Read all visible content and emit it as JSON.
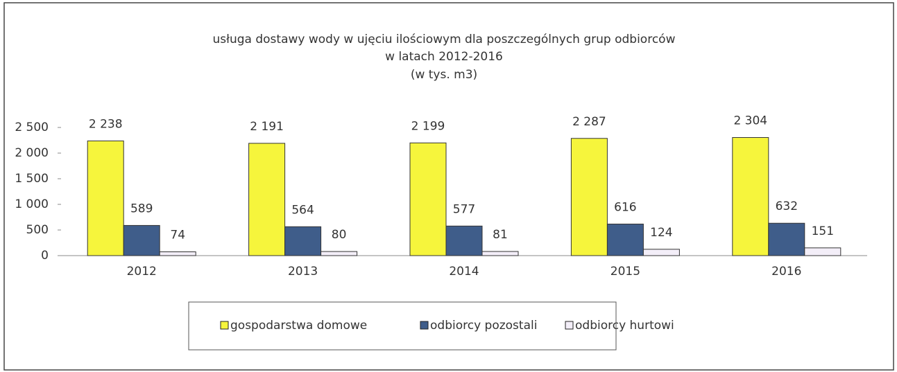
{
  "chart_data": {
    "type": "bar",
    "title": [
      "usługa dostawy wody w ujęciu ilościowym dla poszczególnych grup odbiorców",
      "w latach 2012-2016",
      "(w tys. m3)"
    ],
    "categories": [
      "2012",
      "2013",
      "2014",
      "2015",
      "2016"
    ],
    "series": [
      {
        "name": "gospodarstwa domowe",
        "color": "#f6f53c",
        "values": [
          2238,
          2191,
          2199,
          2287,
          2304
        ],
        "value_labels": [
          "2 238",
          "2 191",
          "2 199",
          "2 287",
          "2 304"
        ]
      },
      {
        "name": "odbiorcy pozostali",
        "color": "#3f5d8a",
        "values": [
          589,
          564,
          577,
          616,
          632
        ]
      },
      {
        "name": "odbiorcy hurtowi",
        "color": "#f3eef8",
        "values": [
          74,
          80,
          81,
          124,
          151
        ]
      }
    ],
    "ylim": [
      0,
      2500
    ],
    "yticks": [
      0,
      500,
      {
        "value": 1000,
        "label": "1 000"
      },
      {
        "value": 1500,
        "label": "1 500"
      },
      {
        "value": 2000,
        "label": "2 000"
      },
      {
        "value": 2500,
        "label": "2 500"
      }
    ],
    "legend": "bottom"
  }
}
